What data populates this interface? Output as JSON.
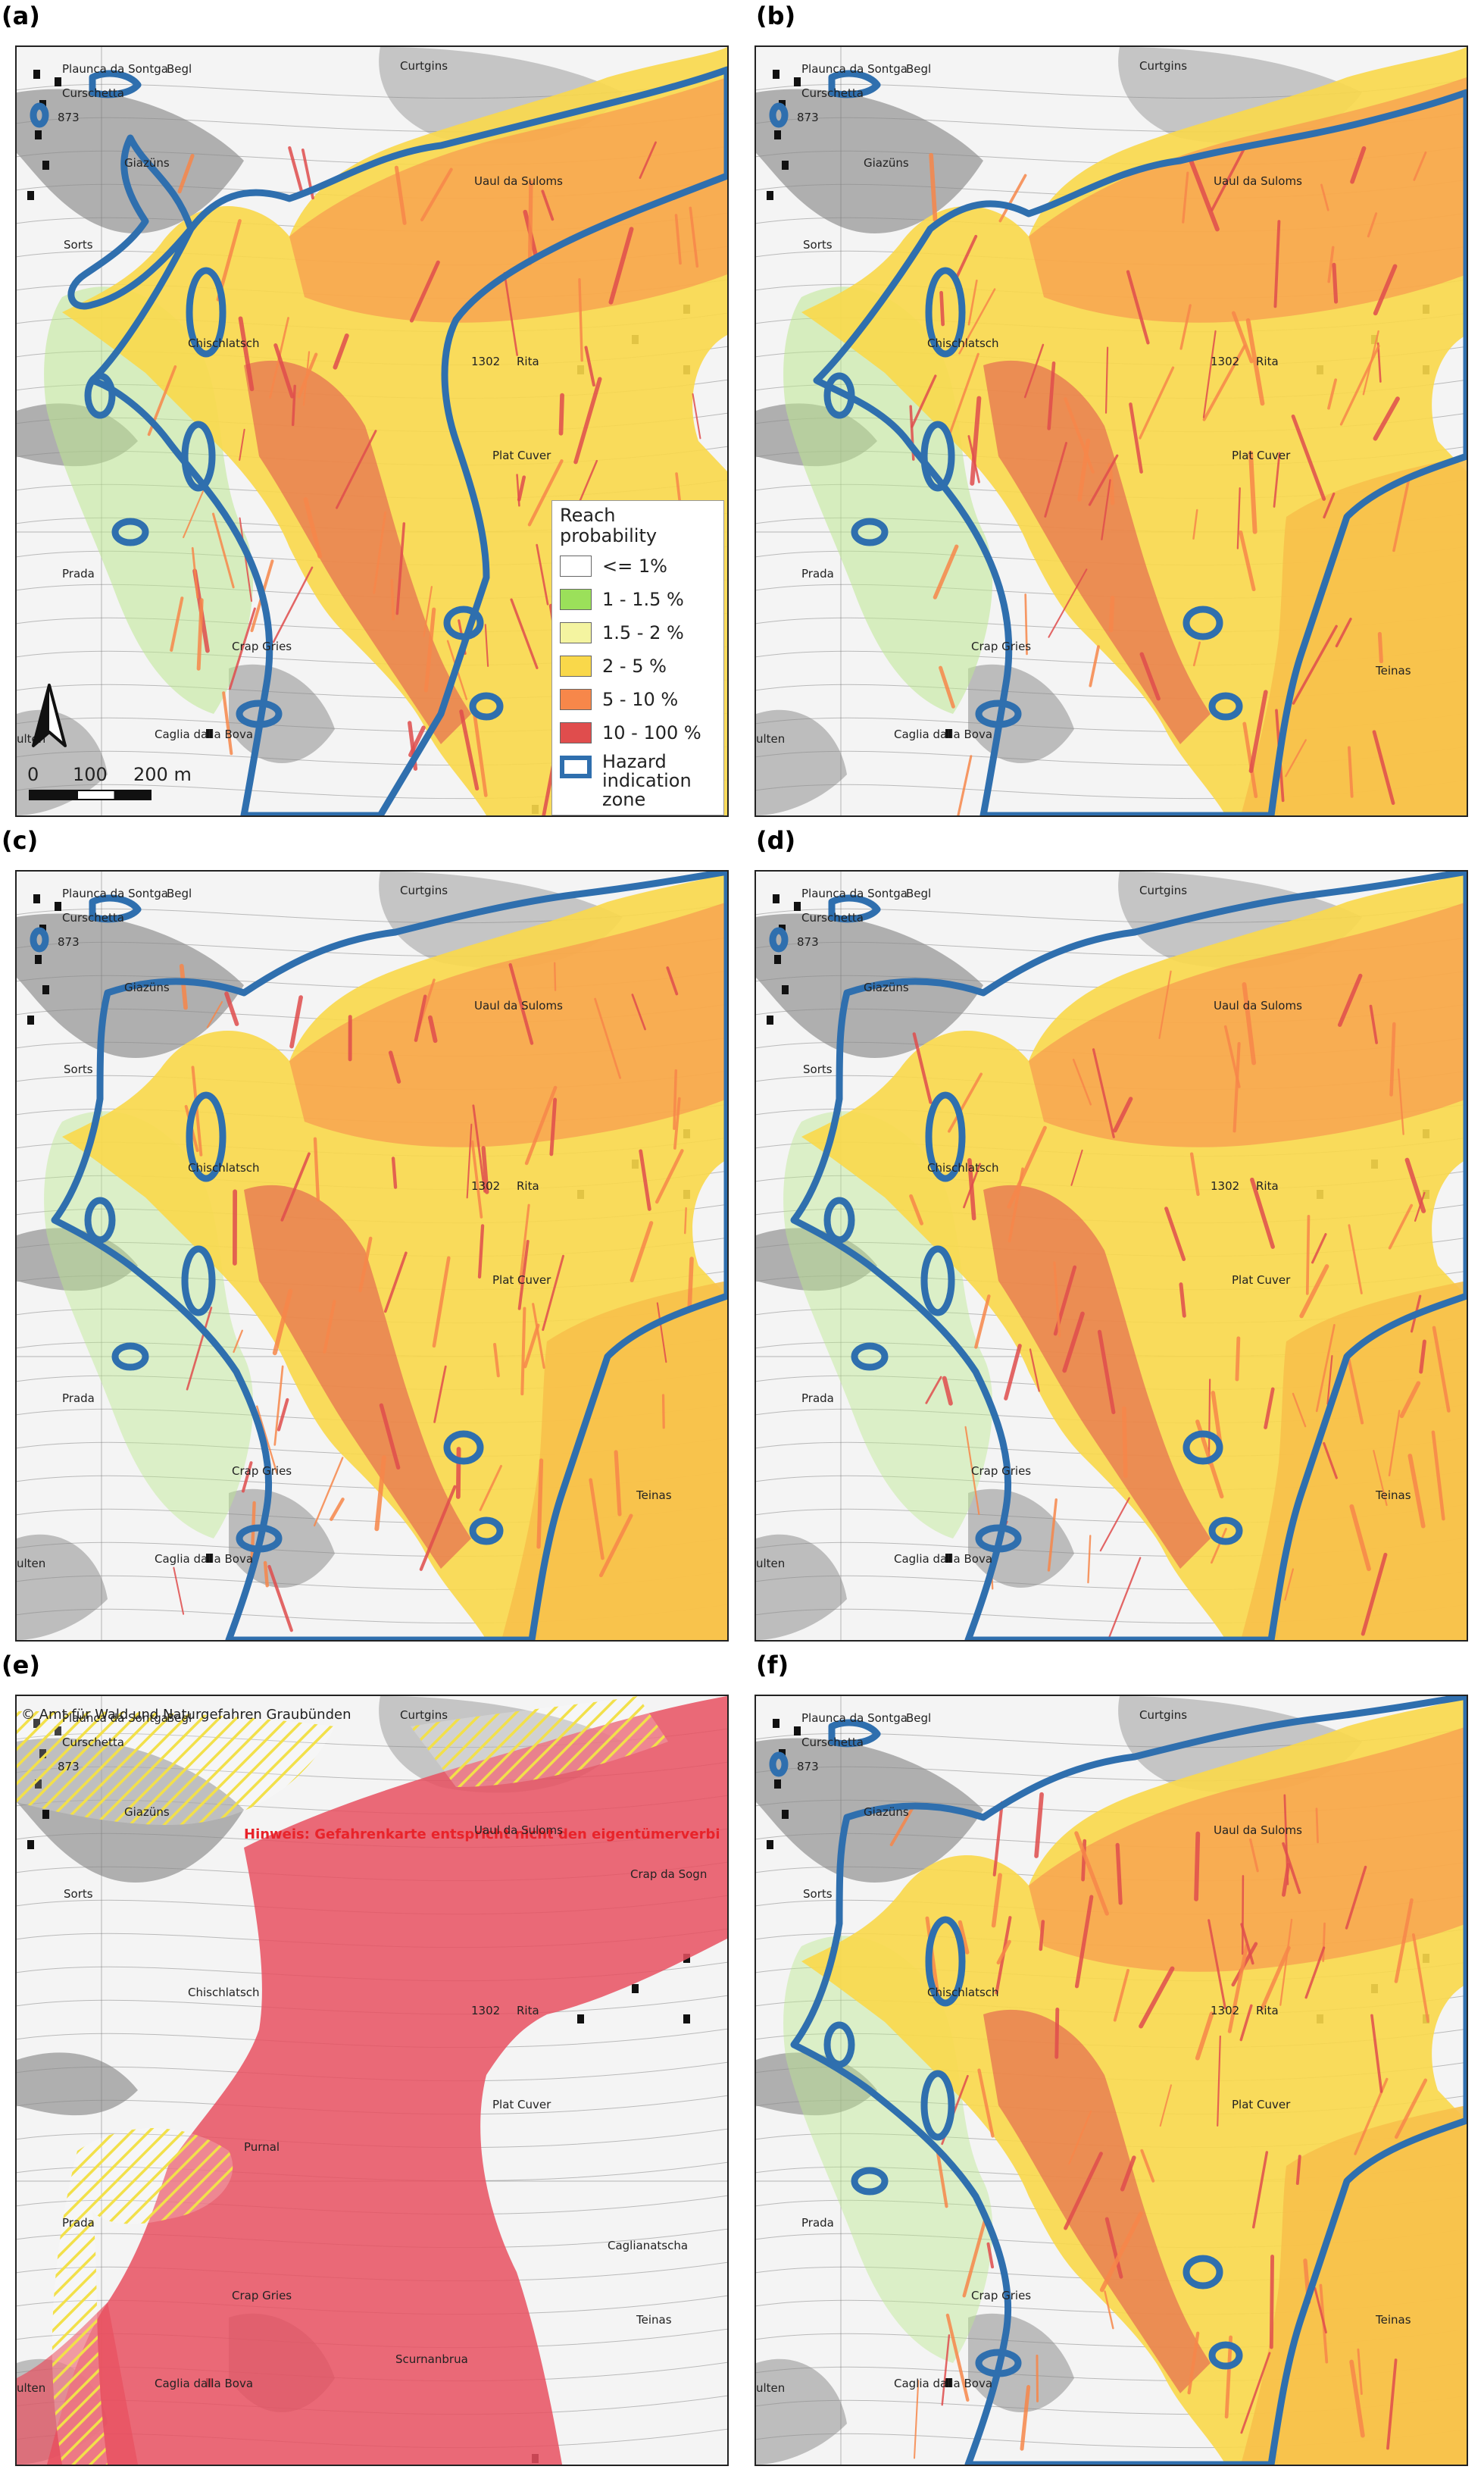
{
  "panels": [
    {
      "id": "a",
      "label": "(a)"
    },
    {
      "id": "b",
      "label": "(b)"
    },
    {
      "id": "c",
      "label": "(c)"
    },
    {
      "id": "d",
      "label": "(d)"
    },
    {
      "id": "e",
      "label": "(e)"
    },
    {
      "id": "f",
      "label": "(f)"
    }
  ],
  "place_names": {
    "plaunca": "Plaunca da Sontga",
    "begl": "Begl",
    "curschetta": "Curschetta",
    "elev_873": "873",
    "curtgins": "Curtgins",
    "giazuns": "Giazüns",
    "uaul": "Uaul da Suloms",
    "sorts": "Sorts",
    "chischlatsch": "Chischlatsch",
    "elev_1302": "1302",
    "rita": "Rita",
    "plat_cuver": "Plat Cuver",
    "prada": "Prada",
    "crap_gries": "Crap Gries",
    "caglia": "Caglia dalla Bova",
    "teinas": "Teinas",
    "ulten": "ulten",
    "purnal": "Purnal",
    "caglianatscha": "Caglianatscha",
    "crap_sogn": "Crap da Sogn",
    "scurnanbrua": "Scurnanbrua"
  },
  "legend": {
    "title": "Reach probability",
    "items": [
      {
        "label": "<= 1%",
        "color": "#ffffff"
      },
      {
        "label": "1 - 1.5 %",
        "color": "#9be05a"
      },
      {
        "label": "1.5 - 2 %",
        "color": "#f4f4a0"
      },
      {
        "label": "2 - 5 %",
        "color": "#f9d84a"
      },
      {
        "label": "5 - 10 %",
        "color": "#f7874a"
      },
      {
        "label": "10 - 100 %",
        "color": "#e04d4d"
      }
    ],
    "hazard_label": "Hazard indication zone",
    "hazard_color": "#2f6fae"
  },
  "scale": {
    "labels": [
      "0",
      "100",
      "200 m"
    ]
  },
  "north_arrow": {
    "icon": "north-arrow-icon"
  },
  "panel_e": {
    "copyright": "© Amt für Wald und Naturgefahren Graubünden",
    "notice": "Hinweis: Gefahrenkarte entspricht nicht den eigentümerverbi"
  },
  "colors": {
    "hazard_red": "#e85060",
    "hazard_yellow_hatch": "#f2e04a",
    "terrain_gray": "#9e9e9e",
    "base_white": "#f5f5f5"
  }
}
